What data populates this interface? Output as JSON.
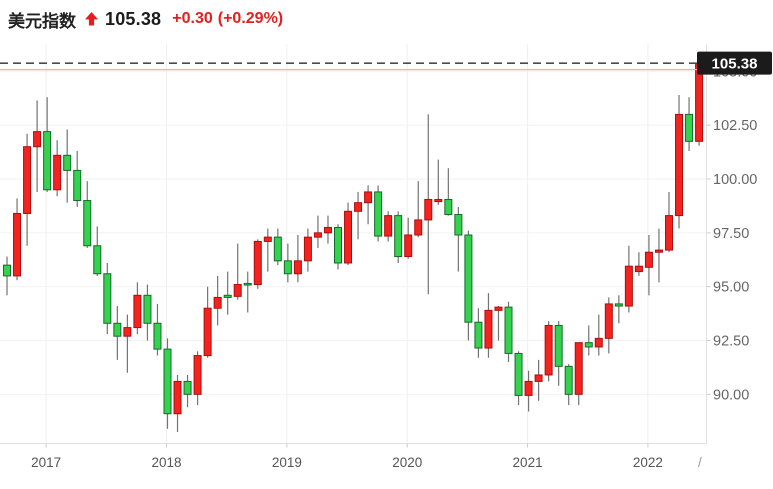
{
  "quote": {
    "title": "美元指数",
    "direction": "up",
    "price": "105.38",
    "change": "+0.30",
    "change_pct": "(+0.29%)"
  },
  "colors": {
    "accent_red": "#e61d1d",
    "up_fill": "#f32320",
    "up_border": "#ad0e0e",
    "down_fill": "#35d14f",
    "down_border": "#156a2d",
    "wick": "#737373",
    "prev_close_line": "#f5abab",
    "last_price_line": "#4a4a4a",
    "badge_bg": "#1b1b1b",
    "badge_text": "#ffffff",
    "h_grid": "#f2f2f2",
    "v_grid": "#f0f0f0",
    "axis_border": "#e2e2e2",
    "tick_mark": "#cccccc",
    "y_label_text": "#666666",
    "x_label_text": "#555555",
    "title_text": "#222222"
  },
  "chart_data": {
    "type": "candlestick",
    "title": "美元指数",
    "interval": "monthly",
    "grid": "on",
    "last_price": 105.38,
    "prev_close": 105.08,
    "y_axis": {
      "min": 87.74,
      "max": 106.27,
      "ticks": [
        105.0,
        102.5,
        100.0,
        97.5,
        95.0,
        92.5,
        90.0
      ]
    },
    "x_axis": {
      "labels": [
        {
          "label": "2017",
          "candle_index": 4
        },
        {
          "label": "2018",
          "candle_index": 16
        },
        {
          "label": "2019",
          "candle_index": 28
        },
        {
          "label": "2020",
          "candle_index": 40
        },
        {
          "label": "2021",
          "candle_index": 52
        },
        {
          "label": "2022",
          "candle_index": 64
        }
      ],
      "partial_label": "/"
    },
    "columns": [
      "month",
      "open",
      "high",
      "low",
      "close"
    ],
    "candles": [
      [
        "2016-09",
        96.0,
        96.4,
        94.6,
        95.5
      ],
      [
        "2016-10",
        95.5,
        99.1,
        95.3,
        98.4
      ],
      [
        "2016-11",
        98.4,
        102.1,
        96.9,
        101.5
      ],
      [
        "2016-12",
        101.5,
        103.65,
        99.4,
        102.2
      ],
      [
        "2017-01",
        102.2,
        103.8,
        99.4,
        99.5
      ],
      [
        "2017-02",
        99.5,
        101.8,
        99.2,
        101.1
      ],
      [
        "2017-03",
        101.1,
        102.3,
        98.9,
        100.4
      ],
      [
        "2017-04",
        100.4,
        101.3,
        98.7,
        99.0
      ],
      [
        "2017-05",
        99.0,
        99.9,
        96.8,
        96.9
      ],
      [
        "2017-06",
        96.9,
        97.8,
        95.5,
        95.6
      ],
      [
        "2017-07",
        95.6,
        96.1,
        92.8,
        93.3
      ],
      [
        "2017-08",
        93.3,
        94.1,
        91.6,
        92.7
      ],
      [
        "2017-09",
        92.7,
        93.7,
        91.0,
        93.1
      ],
      [
        "2017-10",
        93.1,
        95.2,
        92.8,
        94.6
      ],
      [
        "2017-11",
        94.6,
        95.1,
        92.5,
        93.3
      ],
      [
        "2017-12",
        93.3,
        94.2,
        91.8,
        92.1
      ],
      [
        "2018-01",
        92.1,
        92.6,
        88.4,
        89.1
      ],
      [
        "2018-02",
        89.1,
        90.9,
        88.25,
        90.6
      ],
      [
        "2018-03",
        90.6,
        90.9,
        89.4,
        90.0
      ],
      [
        "2018-04",
        90.0,
        92.0,
        89.5,
        91.8
      ],
      [
        "2018-05",
        91.8,
        95.0,
        91.7,
        94.0
      ],
      [
        "2018-06",
        94.0,
        95.5,
        93.2,
        94.5
      ],
      [
        "2018-07",
        94.6,
        95.7,
        93.7,
        94.5
      ],
      [
        "2018-08",
        94.55,
        97.0,
        94.4,
        95.1
      ],
      [
        "2018-09",
        95.15,
        95.7,
        93.8,
        95.1
      ],
      [
        "2018-10",
        95.1,
        97.2,
        94.9,
        97.1
      ],
      [
        "2018-11",
        97.1,
        97.7,
        95.7,
        97.3
      ],
      [
        "2018-12",
        97.3,
        97.7,
        96.0,
        96.2
      ],
      [
        "2019-01",
        96.2,
        97.0,
        95.2,
        95.6
      ],
      [
        "2019-02",
        95.6,
        97.4,
        95.2,
        96.2
      ],
      [
        "2019-03",
        96.2,
        97.7,
        95.7,
        97.3
      ],
      [
        "2019-04",
        97.3,
        98.3,
        96.8,
        97.5
      ],
      [
        "2019-05",
        97.5,
        98.3,
        97.0,
        97.75
      ],
      [
        "2019-06",
        97.75,
        97.9,
        95.8,
        96.1
      ],
      [
        "2019-07",
        96.1,
        98.9,
        96.0,
        98.5
      ],
      [
        "2019-08",
        98.5,
        99.4,
        97.2,
        98.9
      ],
      [
        "2019-09",
        98.9,
        99.7,
        97.9,
        99.4
      ],
      [
        "2019-10",
        99.4,
        99.7,
        97.1,
        97.35
      ],
      [
        "2019-11",
        97.35,
        98.5,
        97.1,
        98.3
      ],
      [
        "2019-12",
        98.3,
        98.5,
        96.1,
        96.4
      ],
      [
        "2020-01",
        96.4,
        98.2,
        96.3,
        97.4
      ],
      [
        "2020-02",
        97.4,
        99.9,
        97.3,
        98.1
      ],
      [
        "2020-03",
        98.1,
        103.0,
        94.65,
        99.05
      ],
      [
        "2020-04",
        98.95,
        100.9,
        98.8,
        99.05
      ],
      [
        "2020-05",
        99.05,
        100.5,
        98.3,
        98.35
      ],
      [
        "2020-06",
        98.35,
        98.7,
        95.7,
        97.4
      ],
      [
        "2020-07",
        97.4,
        97.6,
        92.5,
        93.35
      ],
      [
        "2020-08",
        93.35,
        94.0,
        91.7,
        92.15
      ],
      [
        "2020-09",
        92.15,
        94.7,
        91.7,
        93.9
      ],
      [
        "2020-10",
        93.9,
        94.1,
        92.5,
        94.05
      ],
      [
        "2020-11",
        94.05,
        94.3,
        91.5,
        91.9
      ],
      [
        "2020-12",
        91.9,
        92.0,
        89.5,
        89.95
      ],
      [
        "2021-01",
        89.95,
        91.1,
        89.2,
        90.6
      ],
      [
        "2021-02",
        90.6,
        91.6,
        89.7,
        90.9
      ],
      [
        "2021-03",
        90.9,
        93.4,
        90.6,
        93.2
      ],
      [
        "2021-04",
        93.2,
        93.4,
        90.4,
        91.3
      ],
      [
        "2021-05",
        91.3,
        91.4,
        89.5,
        90.0
      ],
      [
        "2021-06",
        90.0,
        92.4,
        89.5,
        92.4
      ],
      [
        "2021-07",
        92.4,
        93.2,
        91.8,
        92.2
      ],
      [
        "2021-08",
        92.2,
        93.7,
        91.8,
        92.6
      ],
      [
        "2021-09",
        92.6,
        94.5,
        91.9,
        94.2
      ],
      [
        "2021-10",
        94.2,
        94.6,
        93.3,
        94.1
      ],
      [
        "2021-11",
        94.1,
        96.9,
        93.8,
        95.95
      ],
      [
        "2021-12",
        95.7,
        96.6,
        95.5,
        95.95
      ],
      [
        "2022-01",
        95.9,
        97.4,
        94.6,
        96.6
      ],
      [
        "2022-02",
        96.6,
        97.7,
        95.2,
        96.7
      ],
      [
        "2022-03",
        96.7,
        99.4,
        96.6,
        98.3
      ],
      [
        "2022-04",
        98.3,
        103.9,
        97.7,
        103.0
      ],
      [
        "2022-05",
        103.0,
        103.8,
        101.3,
        101.75
      ],
      [
        "2022-06",
        101.75,
        105.79,
        101.55,
        105.38
      ]
    ]
  }
}
